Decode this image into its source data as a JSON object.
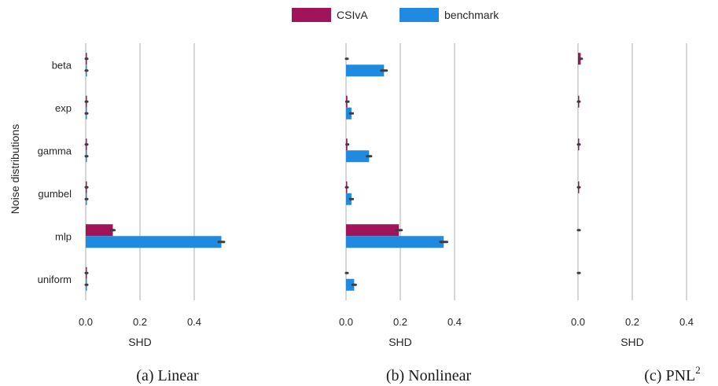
{
  "legend": [
    {
      "label": "CSIvA",
      "color": "#a0155a"
    },
    {
      "label": "benchmark",
      "color": "#1f8ae0"
    }
  ],
  "ylabel": "Noise distributions",
  "categories": [
    "beta",
    "exp",
    "gamma",
    "gumbel",
    "mlp",
    "uniform"
  ],
  "chart_data": [
    {
      "type": "bar",
      "orientation": "horizontal",
      "caption": "(a) Linear",
      "xlabel": "SHD",
      "xticks": [
        "0.0",
        "0.2",
        "0.4"
      ],
      "xlim": [
        0,
        0.53
      ],
      "grid": true,
      "categories": [
        "beta",
        "exp",
        "gamma",
        "gumbel",
        "mlp",
        "uniform"
      ],
      "series": [
        {
          "name": "CSIvA",
          "values": [
            0.002,
            0.002,
            0.002,
            0.002,
            0.1,
            0.002
          ],
          "err": [
            0.006,
            0.004,
            0.004,
            0.004,
            0.012,
            0.004
          ]
        },
        {
          "name": "benchmark",
          "values": [
            0.002,
            0.002,
            0.002,
            0.002,
            0.5,
            0.002
          ],
          "err": [
            0.004,
            0.004,
            0.004,
            0.004,
            0.02,
            0.004
          ]
        }
      ]
    },
    {
      "type": "bar",
      "orientation": "horizontal",
      "caption": "(b) Nonlinear",
      "xlabel": "SHD",
      "xticks": [
        "0.0",
        "0.2",
        "0.4"
      ],
      "xlim": [
        0,
        0.45
      ],
      "grid": true,
      "categories": [
        "beta",
        "exp",
        "gamma",
        "gumbel",
        "mlp",
        "uniform"
      ],
      "series": [
        {
          "name": "CSIvA",
          "values": [
            0.0,
            0.005,
            0.005,
            0.002,
            0.195,
            0.0
          ],
          "err": [
            0.006,
            0.008,
            0.006,
            0.006,
            0.02,
            0.006
          ]
        },
        {
          "name": "benchmark",
          "values": [
            0.14,
            0.02,
            0.085,
            0.02,
            0.36,
            0.03
          ],
          "err": [
            0.02,
            0.01,
            0.015,
            0.01,
            0.025,
            0.012
          ]
        }
      ]
    },
    {
      "type": "bar",
      "orientation": "horizontal",
      "caption": "(c) PNL",
      "caption_superscript": "2",
      "xlabel": "SHD",
      "xticks": [
        "0.0",
        "0.2",
        "0.4"
      ],
      "xlim": [
        0,
        0.45
      ],
      "grid": true,
      "categories": [
        "beta",
        "exp",
        "gamma",
        "gumbel",
        "mlp",
        "uniform"
      ],
      "series": [
        {
          "name": "CSIvA",
          "values": [
            0.01,
            0.002,
            0.002,
            0.002,
            0.0,
            0.0
          ],
          "err": [
            0.008,
            0.004,
            0.004,
            0.004,
            0.006,
            0.006
          ]
        },
        {
          "name": "benchmark",
          "values": [
            0.0,
            0.0,
            0.0,
            0.0,
            0.0,
            0.0
          ],
          "err": [
            0,
            0,
            0,
            0,
            0,
            0
          ]
        }
      ]
    }
  ]
}
